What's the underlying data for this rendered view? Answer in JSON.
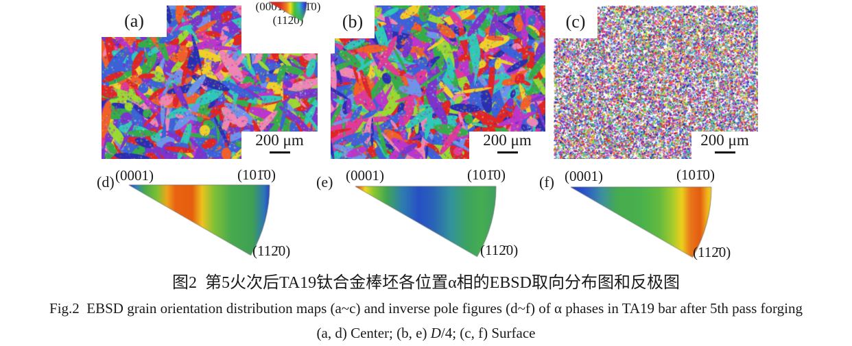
{
  "figure": {
    "maps": [
      {
        "label": "(a)",
        "scale_text": "200 μm"
      },
      {
        "label": "(b)",
        "scale_text": "200 μm"
      },
      {
        "label": "(c)",
        "scale_text": "200 μm"
      }
    ],
    "color_key": {
      "top_labels": "(0001) (101̄0)",
      "bottom_label": "(112̄0)",
      "gradient_stops": [
        [
          0,
          "#e02020"
        ],
        [
          0.3,
          "#e03020"
        ],
        [
          0.47,
          "#f08020"
        ],
        [
          0.57,
          "#f0e020"
        ],
        [
          0.68,
          "#50c030"
        ],
        [
          0.8,
          "#30c0c0"
        ],
        [
          0.92,
          "#3050e0"
        ],
        [
          1,
          "#2828c0"
        ]
      ]
    },
    "pole_figures": [
      {
        "label": "(d)",
        "corners": {
          "c0001": "(0001)",
          "c1010": "(101̄0)",
          "c1120": "(112̄0)"
        },
        "gradient_stops": [
          [
            0,
            "#2038c8"
          ],
          [
            0.05,
            "#2f80c0"
          ],
          [
            0.11,
            "#49aa4c"
          ],
          [
            0.2,
            "#7cc133"
          ],
          [
            0.27,
            "#efa41c"
          ],
          [
            0.33,
            "#e96312"
          ],
          [
            0.45,
            "#e55f0f"
          ],
          [
            0.52,
            "#eec31e"
          ],
          [
            0.6,
            "#86c236"
          ],
          [
            0.72,
            "#49ab4d"
          ],
          [
            0.88,
            "#3f9f55"
          ],
          [
            0.96,
            "#2e77b5"
          ],
          [
            1,
            "#2545c5"
          ]
        ]
      },
      {
        "label": "(e)",
        "corners": {
          "c0001": "(0001)",
          "c1010": "(101̄0)",
          "c1120": "(112̄0)"
        },
        "gradient_stops": [
          [
            0,
            "#e53110"
          ],
          [
            0.035,
            "#ef7d14"
          ],
          [
            0.07,
            "#eeda1f"
          ],
          [
            0.13,
            "#8cc733"
          ],
          [
            0.22,
            "#42a750"
          ],
          [
            0.33,
            "#2e7fae"
          ],
          [
            0.45,
            "#2750c5"
          ],
          [
            0.55,
            "#2a62b8"
          ],
          [
            0.68,
            "#33939b"
          ],
          [
            0.8,
            "#3da45f"
          ],
          [
            0.9,
            "#46ad52"
          ],
          [
            1,
            "#3f9f62"
          ]
        ]
      },
      {
        "label": "(f)",
        "corners": {
          "c0001": "(0001)",
          "c1010": "(101̄0)",
          "c1120": "(112̄0)"
        },
        "gradient_stops": [
          [
            0,
            "#2038c8"
          ],
          [
            0.1,
            "#2c55cc"
          ],
          [
            0.22,
            "#3d8fa0"
          ],
          [
            0.33,
            "#46ab4f"
          ],
          [
            0.5,
            "#49b14c"
          ],
          [
            0.63,
            "#63ba3f"
          ],
          [
            0.72,
            "#a1cb2d"
          ],
          [
            0.79,
            "#edd01d"
          ],
          [
            0.85,
            "#e8781a"
          ],
          [
            0.92,
            "#e45c11"
          ],
          [
            0.97,
            "#eeb31d"
          ],
          [
            1,
            "#f0d020"
          ]
        ]
      }
    ],
    "ebsd_palette": [
      "#e02525",
      "#f06028",
      "#f0d028",
      "#9ad832",
      "#35ac4a",
      "#2fc9b8",
      "#3b62d8",
      "#2a2fb2",
      "#7a35cc",
      "#bc35cc",
      "#e03a98",
      "#ef85b5",
      "#6f93ea",
      "#a2e6f2"
    ],
    "caption": {
      "line1_zh": "图2  第5火次后TA19钛合金棒坯各位置α相的EBSD取向分布图和反极图",
      "line2_en": "Fig.2  EBSD grain orientation distribution maps (a~c) and inverse pole figures (d~f) of α phases in TA19 bar after 5th pass forging",
      "line3_parts": [
        "(a, d) Center; (b, e) ",
        "D",
        "/4; (c, f) Surface"
      ]
    }
  }
}
